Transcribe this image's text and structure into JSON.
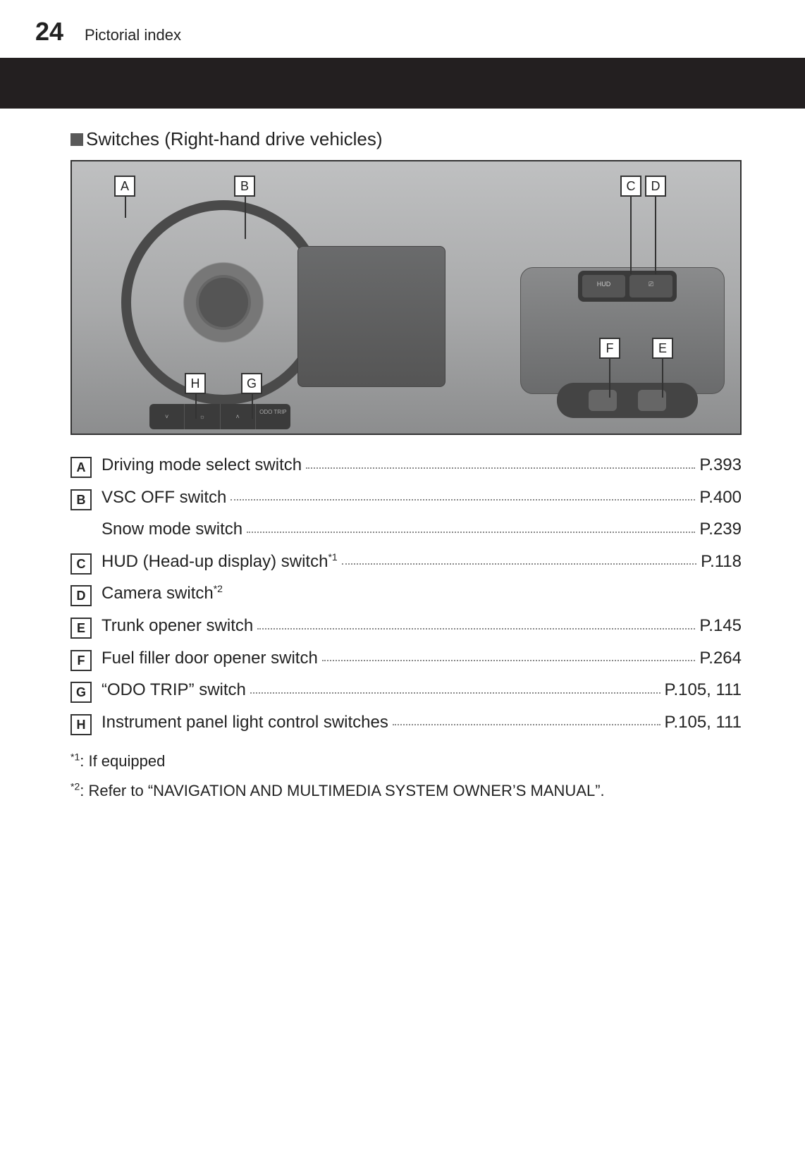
{
  "header": {
    "page_number": "24",
    "section": "Pictorial index"
  },
  "subheading": "Switches (Right-hand drive vehicles)",
  "callouts": {
    "A": "A",
    "B": "B",
    "C": "C",
    "D": "D",
    "E": "E",
    "F": "F",
    "G": "G",
    "H": "H"
  },
  "btn_panel": {
    "hud": "HUD",
    "view": "⎚"
  },
  "lower_strip": {
    "a": "˅",
    "b": "☼",
    "c": "˄",
    "d": "ODO\nTRIP"
  },
  "items": [
    {
      "letter": "A",
      "label": "Driving mode select switch",
      "sup": "",
      "page": "P.393"
    },
    {
      "letter": "B",
      "label": "VSC OFF switch",
      "sup": "",
      "page": "P.400",
      "sub": [
        {
          "label": "Snow mode switch",
          "page": "P.239"
        }
      ]
    },
    {
      "letter": "C",
      "label": "HUD (Head-up display) switch",
      "sup": "*1",
      "page": "P.118"
    },
    {
      "letter": "D",
      "label": "Camera switch",
      "sup": "*2",
      "page": ""
    },
    {
      "letter": "E",
      "label": "Trunk opener switch",
      "sup": "",
      "page": "P.145"
    },
    {
      "letter": "F",
      "label": "Fuel filler door opener switch",
      "sup": "",
      "page": "P.264"
    },
    {
      "letter": "G",
      "label": "“ODO TRIP” switch",
      "sup": "",
      "page": "P.105, 111"
    },
    {
      "letter": "H",
      "label": "Instrument panel light control switches",
      "sup": "",
      "page": "P.105, 111"
    }
  ],
  "footnotes": [
    {
      "mark": "*1",
      "text": ": If equipped"
    },
    {
      "mark": "*2",
      "text": ": Refer to “NAVIGATION AND MULTIMEDIA SYSTEM OWNER’S MANUAL”."
    }
  ],
  "colors": {
    "stripe": "#231f20",
    "square": "#595959"
  }
}
